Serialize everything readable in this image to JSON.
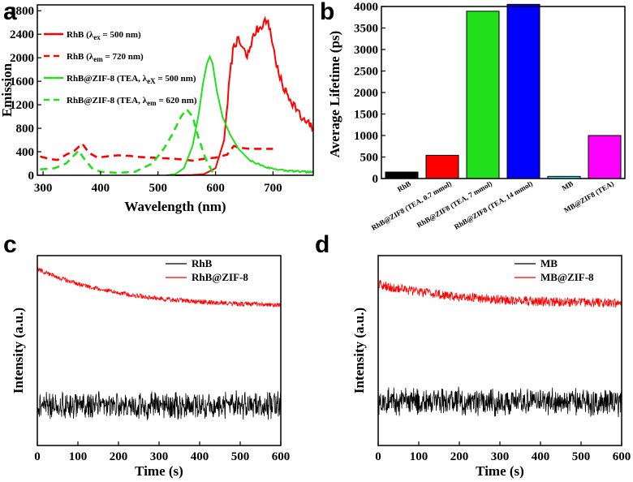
{
  "colors": {
    "red": "#ff0000",
    "green": "#22e01c",
    "blue": "#0000ff",
    "cyan": "#33e0e8",
    "magenta": "#ff00ff",
    "black": "#000000"
  },
  "chart_data": [
    {
      "panel": "a",
      "type": "line",
      "xlabel": "Wavelength (nm)",
      "ylabel": "Emission",
      "xlim": [
        290,
        770
      ],
      "ylim": [
        0,
        2900
      ],
      "xticks": [
        300,
        400,
        500,
        600,
        700
      ],
      "yticks": [
        0,
        400,
        800,
        1200,
        1600,
        2000,
        2400,
        2800
      ],
      "legend_position": "top-left",
      "series": [
        {
          "name": "RhB (λex = 500 nm)",
          "legend_parts": [
            "RhB (λ",
            "ex",
            " = 500 nm)"
          ],
          "color": "#ff0000",
          "style": "solid",
          "points": [
            [
              530,
              0
            ],
            [
              560,
              5
            ],
            [
              580,
              20
            ],
            [
              600,
              120
            ],
            [
              615,
              600
            ],
            [
              625,
              1700
            ],
            [
              632,
              2250
            ],
            [
              640,
              2280
            ],
            [
              648,
              2150
            ],
            [
              655,
              2000
            ],
            [
              662,
              2250
            ],
            [
              670,
              2450
            ],
            [
              680,
              2550
            ],
            [
              688,
              2650
            ],
            [
              695,
              2480
            ],
            [
              700,
              2200
            ],
            [
              710,
              1700
            ],
            [
              720,
              1450
            ],
            [
              730,
              1300
            ],
            [
              740,
              1150
            ],
            [
              750,
              950
            ],
            [
              760,
              880
            ],
            [
              770,
              800
            ]
          ]
        },
        {
          "name": "RhB (λem = 720 nm)",
          "legend_parts": [
            "RhB (λ",
            "em",
            " = 720 nm)"
          ],
          "color": "#ff0000",
          "style": "dashed",
          "points": [
            [
              295,
              320
            ],
            [
              310,
              280
            ],
            [
              325,
              260
            ],
            [
              340,
              350
            ],
            [
              355,
              420
            ],
            [
              368,
              540
            ],
            [
              380,
              380
            ],
            [
              395,
              300
            ],
            [
              410,
              320
            ],
            [
              430,
              340
            ],
            [
              450,
              330
            ],
            [
              470,
              310
            ],
            [
              490,
              300
            ],
            [
              510,
              290
            ],
            [
              530,
              280
            ],
            [
              560,
              250
            ],
            [
              580,
              280
            ],
            [
              600,
              300
            ],
            [
              620,
              350
            ],
            [
              632,
              500
            ],
            [
              640,
              470
            ],
            [
              660,
              450
            ],
            [
              690,
              450
            ],
            [
              700,
              450
            ]
          ]
        },
        {
          "name": "RhB@ZIF-8 (TEA, λex = 500 nm)",
          "legend_parts": [
            "RhB@ZIF-8 (TEA, λ",
            "eX",
            " = 500 nm)"
          ],
          "color": "#22e01c",
          "style": "solid",
          "points": [
            [
              515,
              0
            ],
            [
              530,
              20
            ],
            [
              545,
              120
            ],
            [
              560,
              500
            ],
            [
              570,
              1000
            ],
            [
              578,
              1550
            ],
            [
              585,
              1900
            ],
            [
              590,
              2020
            ],
            [
              595,
              1900
            ],
            [
              602,
              1450
            ],
            [
              612,
              1000
            ],
            [
              625,
              700
            ],
            [
              640,
              450
            ],
            [
              660,
              250
            ],
            [
              690,
              130
            ],
            [
              720,
              80
            ],
            [
              750,
              60
            ],
            [
              770,
              50
            ]
          ]
        },
        {
          "name": "RhB@ZIF-8 (TEA, λem = 620 nm)",
          "legend_parts": [
            "RhB@ZIF-8 (TEA, λ",
            "em",
            " = 620 nm)"
          ],
          "color": "#22e01c",
          "style": "dashed",
          "points": [
            [
              295,
              100
            ],
            [
              320,
              120
            ],
            [
              340,
              200
            ],
            [
              355,
              350
            ],
            [
              362,
              420
            ],
            [
              370,
              300
            ],
            [
              385,
              120
            ],
            [
              400,
              60
            ],
            [
              430,
              40
            ],
            [
              460,
              60
            ],
            [
              490,
              200
            ],
            [
              510,
              450
            ],
            [
              525,
              700
            ],
            [
              540,
              1000
            ],
            [
              550,
              1120
            ],
            [
              560,
              1000
            ],
            [
              570,
              650
            ],
            [
              582,
              300
            ],
            [
              595,
              50
            ],
            [
              600,
              0
            ]
          ]
        }
      ]
    },
    {
      "panel": "b",
      "type": "bar",
      "xlabel": "",
      "ylabel": "Average Lifetime (ps)",
      "ylim": [
        0,
        4000
      ],
      "yticks": [
        0,
        500,
        1000,
        1500,
        2000,
        2500,
        3000,
        3500,
        4000
      ],
      "categories": [
        "RhB",
        "RhB@ZIF8 (TEA, 0.7 mmol)",
        "RhB@ZIF8 (TEA, 7 mmol)",
        "RhB@ZIF8 (TEA, 14 mmol)",
        "MB",
        "MB@ZIF8 (TEA)"
      ],
      "values": [
        150,
        540,
        3890,
        4050,
        50,
        1000
      ],
      "bar_colors": [
        "#000000",
        "#ff0000",
        "#22e01c",
        "#0000ff",
        "#33e0e8",
        "#ff00ff"
      ]
    },
    {
      "panel": "c",
      "type": "line",
      "xlabel": "Time (s)",
      "ylabel": "Intensity (a.u.)",
      "xlim": [
        0,
        600
      ],
      "xticks": [
        0,
        100,
        200,
        300,
        400,
        500,
        600
      ],
      "legend_position": "top-right",
      "series": [
        {
          "name": "RhB",
          "color": "#000000",
          "style": "solid",
          "baseline": 0.21,
          "noise": 0.07
        },
        {
          "name": "RhB@ZIF-8",
          "color": "#ff0000",
          "style": "solid",
          "start": 0.93,
          "end": 0.74,
          "noise": 0.012
        }
      ]
    },
    {
      "panel": "d",
      "type": "line",
      "xlabel": "Time (s)",
      "ylabel": "Intensity (a.u.)",
      "xlim": [
        0,
        600
      ],
      "xticks": [
        0,
        100,
        200,
        300,
        400,
        500,
        600
      ],
      "legend_position": "top-right",
      "series": [
        {
          "name": "MB",
          "color": "#000000",
          "style": "solid",
          "baseline": 0.23,
          "noise": 0.07
        },
        {
          "name": "MB@ZIF-8",
          "color": "#ff0000",
          "style": "solid",
          "start": 0.85,
          "end": 0.75,
          "noise": 0.025
        }
      ]
    }
  ]
}
